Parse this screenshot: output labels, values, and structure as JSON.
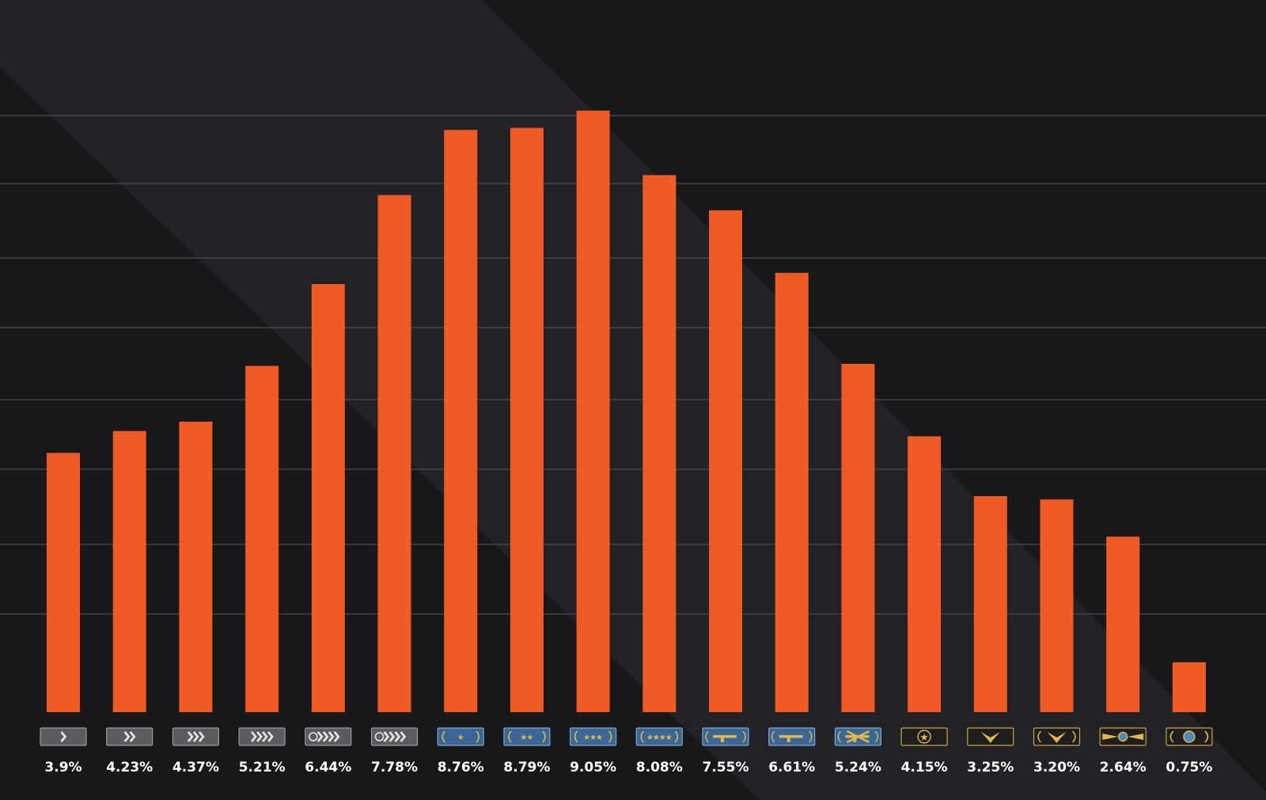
{
  "colors": {
    "background_dark": "#18181b",
    "background_light": "#222226",
    "bar": "#f05a24",
    "gridline": "#4a4a4f",
    "label": "#ffffff",
    "badge_silver": "#5a5a5e",
    "badge_gold_nova": "#3d6a9a",
    "badge_elite": "#1c1c1c",
    "badge_emblem_gold": "#d7b44a",
    "badge_emblem_silver": "#e6e6e6"
  },
  "chart_data": {
    "type": "bar",
    "title": "",
    "xlabel": "",
    "ylabel": "",
    "ylim": [
      0,
      10
    ],
    "grid": true,
    "y_axis_labels_shown": false,
    "categories": [
      "silver-1",
      "silver-2",
      "silver-3",
      "silver-4",
      "silver-elite",
      "silver-elite-master",
      "gold-nova-1",
      "gold-nova-2",
      "gold-nova-3",
      "gold-nova-master",
      "master-guardian-1",
      "master-guardian-2",
      "master-guardian-elite",
      "distinguished-master-guardian",
      "legendary-eagle",
      "legendary-eagle-master",
      "supreme-master-first-class",
      "global-elite"
    ],
    "badges": [
      {
        "icon": "silver-chevron-1-icon",
        "tier": "silver",
        "marks": 1
      },
      {
        "icon": "silver-chevron-2-icon",
        "tier": "silver",
        "marks": 2
      },
      {
        "icon": "silver-chevron-3-icon",
        "tier": "silver",
        "marks": 3
      },
      {
        "icon": "silver-chevron-4-icon",
        "tier": "silver",
        "marks": 4
      },
      {
        "icon": "silver-elite-icon",
        "tier": "silver",
        "marks": 4
      },
      {
        "icon": "silver-elite-master-icon",
        "tier": "silver",
        "marks": 4
      },
      {
        "icon": "gold-nova-star-1-icon",
        "tier": "gold-nova",
        "marks": 1
      },
      {
        "icon": "gold-nova-star-2-icon",
        "tier": "gold-nova",
        "marks": 2
      },
      {
        "icon": "gold-nova-star-3-icon",
        "tier": "gold-nova",
        "marks": 3
      },
      {
        "icon": "gold-nova-star-4-icon",
        "tier": "gold-nova",
        "marks": 4
      },
      {
        "icon": "rifle-icon",
        "tier": "guardian",
        "marks": 1
      },
      {
        "icon": "double-rifle-icon",
        "tier": "guardian",
        "marks": 2
      },
      {
        "icon": "crossed-rifles-icon",
        "tier": "guardian",
        "marks": 3
      },
      {
        "icon": "star-emblem-icon",
        "tier": "elite",
        "marks": 1
      },
      {
        "icon": "eagle-icon",
        "tier": "elite",
        "marks": 1
      },
      {
        "icon": "eagle-wreath-icon",
        "tier": "elite",
        "marks": 2
      },
      {
        "icon": "winged-globe-icon",
        "tier": "elite",
        "marks": 3
      },
      {
        "icon": "globe-wreath-icon",
        "tier": "elite",
        "marks": 4
      }
    ],
    "values": [
      3.9,
      4.23,
      4.37,
      5.21,
      6.44,
      7.78,
      8.76,
      8.79,
      9.05,
      8.08,
      7.55,
      6.61,
      5.24,
      4.15,
      3.25,
      3.2,
      2.64,
      0.75
    ],
    "labels": [
      "3.9%",
      "4.23%",
      "4.37%",
      "5.21%",
      "6.44%",
      "7.78%",
      "8.76%",
      "8.79%",
      "9.05%",
      "8.08%",
      "7.55%",
      "6.61%",
      "5.24%",
      "4.15%",
      "3.25%",
      "3.20%",
      "2.64%",
      "0.75%"
    ]
  }
}
